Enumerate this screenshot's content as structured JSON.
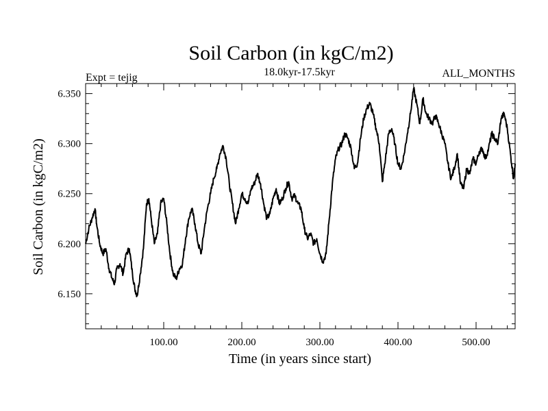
{
  "chart_data": {
    "type": "line",
    "title": "Soil Carbon (in kgC/m2)",
    "subtitle": "18.0kyr-17.5kyr",
    "left_label": "Expt = tejig",
    "right_label": "ALL_MONTHS",
    "xlabel": "Time (in years since start)",
    "ylabel": "Soil Carbon (in kgC/m2)",
    "xlim": [
      0,
      550
    ],
    "ylim": [
      6.115,
      6.36
    ],
    "x_ticks": [
      100,
      200,
      300,
      400,
      500
    ],
    "x_tick_labels": [
      "100.00",
      "200.00",
      "300.00",
      "400.00",
      "500.00"
    ],
    "y_ticks": [
      6.15,
      6.2,
      6.25,
      6.3,
      6.35
    ],
    "y_tick_labels": [
      "6.150",
      "6.200",
      "6.250",
      "6.300",
      "6.350"
    ],
    "grid": false,
    "series": [
      {
        "color": "#000000",
        "x": [
          0,
          4,
          8,
          12,
          14,
          18,
          22,
          26,
          30,
          34,
          37,
          40,
          44,
          48,
          52,
          56,
          60,
          63,
          66,
          70,
          74,
          78,
          81,
          84,
          88,
          92,
          96,
          100,
          104,
          108,
          112,
          116,
          120,
          124,
          128,
          132,
          136,
          140,
          144,
          148,
          152,
          156,
          160,
          164,
          168,
          172,
          176,
          180,
          184,
          188,
          192,
          196,
          200,
          204,
          208,
          212,
          216,
          220,
          224,
          228,
          232,
          236,
          240,
          244,
          248,
          252,
          256,
          260,
          264,
          268,
          272,
          276,
          280,
          284,
          288,
          292,
          296,
          300,
          304,
          308,
          312,
          316,
          320,
          324,
          328,
          332,
          336,
          340,
          344,
          348,
          352,
          356,
          360,
          364,
          368,
          372,
          376,
          380,
          384,
          388,
          392,
          396,
          400,
          404,
          408,
          412,
          416,
          420,
          424,
          428,
          432,
          436,
          440,
          444,
          448,
          452,
          456,
          460,
          464,
          468,
          472,
          476,
          480,
          484,
          488,
          492,
          496,
          500,
          504,
          508,
          512,
          516,
          520,
          524,
          528,
          532,
          536,
          540,
          544,
          548,
          550
        ],
        "y": [
          6.2,
          6.215,
          6.225,
          6.235,
          6.22,
          6.2,
          6.19,
          6.195,
          6.175,
          6.165,
          6.16,
          6.175,
          6.18,
          6.17,
          6.19,
          6.195,
          6.17,
          6.155,
          6.148,
          6.17,
          6.195,
          6.24,
          6.245,
          6.225,
          6.2,
          6.21,
          6.24,
          6.245,
          6.22,
          6.19,
          6.17,
          6.165,
          6.175,
          6.18,
          6.205,
          6.225,
          6.235,
          6.22,
          6.2,
          6.19,
          6.215,
          6.235,
          6.25,
          6.265,
          6.275,
          6.29,
          6.298,
          6.285,
          6.26,
          6.24,
          6.22,
          6.235,
          6.25,
          6.245,
          6.24,
          6.255,
          6.26,
          6.27,
          6.26,
          6.24,
          6.225,
          6.23,
          6.245,
          6.255,
          6.24,
          6.245,
          6.255,
          6.262,
          6.245,
          6.248,
          6.24,
          6.235,
          6.215,
          6.205,
          6.21,
          6.2,
          6.205,
          6.19,
          6.182,
          6.19,
          6.225,
          6.26,
          6.285,
          6.295,
          6.3,
          6.31,
          6.305,
          6.295,
          6.275,
          6.28,
          6.305,
          6.325,
          6.335,
          6.34,
          6.33,
          6.315,
          6.3,
          6.262,
          6.285,
          6.31,
          6.315,
          6.3,
          6.28,
          6.275,
          6.29,
          6.31,
          6.33,
          6.355,
          6.34,
          6.32,
          6.345,
          6.33,
          6.325,
          6.32,
          6.328,
          6.32,
          6.31,
          6.3,
          6.28,
          6.265,
          6.275,
          6.29,
          6.26,
          6.255,
          6.275,
          6.27,
          6.285,
          6.28,
          6.292,
          6.295,
          6.285,
          6.295,
          6.31,
          6.305,
          6.3,
          6.325,
          6.33,
          6.315,
          6.29,
          6.265,
          6.28
        ]
      }
    ]
  }
}
